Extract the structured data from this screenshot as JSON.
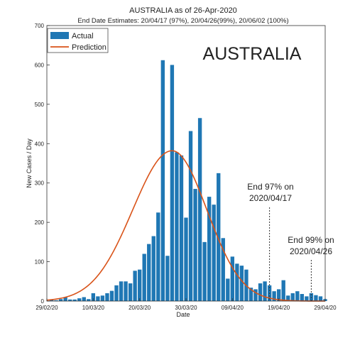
{
  "chart_data": {
    "type": "bar",
    "title": "AUSTRALIA as of 26-Apr-2020",
    "subtitle": "End Date Estimates: 20/04/17 (97%), 20/04/26(99%), 20/06/02 (100%)",
    "watermark": "AUSTRALIA",
    "xlabel": "Date",
    "ylabel": "New Cases / Day",
    "ylim": [
      0,
      700
    ],
    "yticks": [
      "0",
      "100",
      "200",
      "300",
      "400",
      "500",
      "600",
      "700"
    ],
    "xlim": [
      "2020-02-29",
      "2020-04-29"
    ],
    "xticks": [
      "29/02/20",
      "10/03/20",
      "20/03/20",
      "30/03/20",
      "09/04/20",
      "19/04/20",
      "29/04/20"
    ],
    "legend_position": "top-left",
    "grid": false,
    "colors": {
      "actual": "#1f77b4",
      "prediction": "#d95319",
      "annotation": "#333333"
    },
    "series": [
      {
        "name": "Actual",
        "type": "bar",
        "start_date": "2020-03-01",
        "values": [
          4,
          2,
          5,
          10,
          4,
          4,
          7,
          10,
          5,
          20,
          12,
          14,
          20,
          26,
          40,
          50,
          50,
          45,
          77,
          80,
          120,
          145,
          165,
          225,
          612,
          115,
          600,
          378,
          370,
          212,
          432,
          285,
          465,
          150,
          265,
          245,
          325,
          160,
          57,
          113,
          95,
          90,
          80,
          34,
          30,
          45,
          50,
          40,
          25,
          30,
          53,
          14,
          20,
          25,
          18,
          12,
          20,
          15,
          12,
          5
        ]
      },
      {
        "name": "Prediction",
        "type": "line",
        "curve": {
          "peak_date": "2020-03-27",
          "peak_value": 382,
          "sigma_days_left": 8.5,
          "sigma_days_right": 7.5
        }
      }
    ],
    "annotations": [
      {
        "date": "2020-04-17",
        "line1": "End 97% on",
        "line2": "2020/04/17"
      },
      {
        "date": "2020-04-26",
        "line1": "End 99% on",
        "line2": "2020/04/26"
      }
    ]
  }
}
